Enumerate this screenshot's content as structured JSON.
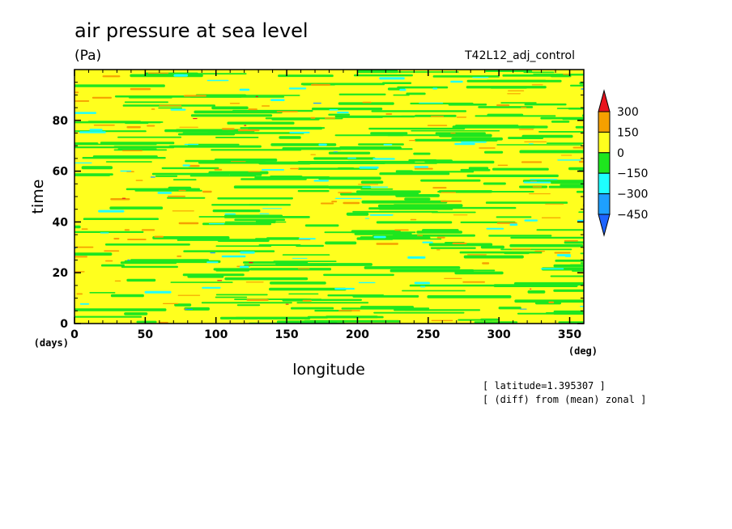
{
  "chart_data": {
    "type": "heatmap",
    "title": "air pressure at sea level",
    "units": "(Pa)",
    "run_name": "T42L12_adj_control",
    "xlabel": "longitude",
    "ylabel": "time",
    "x_unit": "(deg)",
    "y_unit": "(days)",
    "xlim": [
      0,
      360
    ],
    "ylim": [
      0,
      100
    ],
    "x_ticks": [
      0,
      50,
      100,
      150,
      200,
      250,
      300,
      350
    ],
    "y_ticks": [
      0,
      20,
      40,
      60,
      80
    ],
    "notes": [
      "[ latitude=1.395307 ]",
      "[ (diff) from (mean) zonal ]"
    ],
    "colorbar": {
      "labels": [
        "300",
        "150",
        "0",
        "−150",
        "−300",
        "−450"
      ],
      "levels": [
        300,
        150,
        0,
        -150,
        -300,
        -450
      ],
      "colors": {
        "above_300": "#e8141e",
        "150_to_300": "#f5a000",
        "0_to_150": "#ffff1e",
        "-150_to_0": "#1ee61e",
        "-300_to_-150": "#1effff",
        "-450_to_-300": "#1ea0ff",
        "below_-450": "#1e64ff"
      }
    }
  }
}
